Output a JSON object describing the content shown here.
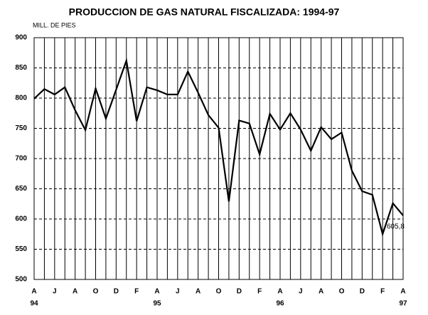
{
  "chart_data": {
    "type": "line",
    "title": "PRODUCCION DE GAS NATURAL FISCALIZADA: 1994-97",
    "y_label": "MILL. DE PIES",
    "categories": [
      "A",
      null,
      "J",
      null,
      "A",
      null,
      "O",
      null,
      "D",
      null,
      "F",
      null,
      "A",
      null,
      "J",
      null,
      "A",
      null,
      "O",
      null,
      "D",
      null,
      "F",
      null,
      "A",
      null,
      "J",
      null,
      "A",
      null,
      "O",
      null,
      "D",
      null,
      "F",
      null,
      "A"
    ],
    "years": [
      "94",
      null,
      null,
      null,
      null,
      null,
      null,
      null,
      null,
      null,
      null,
      null,
      "95",
      null,
      null,
      null,
      null,
      null,
      null,
      null,
      null,
      null,
      null,
      null,
      "96",
      null,
      null,
      null,
      null,
      null,
      null,
      null,
      null,
      null,
      null,
      null,
      "97"
    ],
    "series": [
      {
        "name": "Producción",
        "color": "#000000",
        "values": [
          799,
          815,
          806,
          818,
          780,
          747,
          816,
          766,
          814,
          862,
          762,
          818,
          813,
          806,
          806,
          844,
          809,
          772,
          751,
          629,
          763,
          758,
          707,
          774,
          748,
          775,
          748,
          713,
          752,
          732,
          743,
          680,
          646,
          640,
          575,
          626,
          605.8
        ],
        "value_labels": [
          null,
          null,
          null,
          null,
          null,
          null,
          null,
          null,
          null,
          null,
          null,
          null,
          null,
          null,
          null,
          null,
          null,
          null,
          null,
          null,
          null,
          null,
          null,
          null,
          null,
          null,
          null,
          null,
          null,
          null,
          null,
          null,
          null,
          null,
          null,
          null,
          "605,8"
        ]
      }
    ],
    "ylim": [
      500,
      900
    ],
    "yticks": [
      500,
      550,
      600,
      650,
      700,
      750,
      800,
      850,
      900
    ],
    "grid": true
  }
}
